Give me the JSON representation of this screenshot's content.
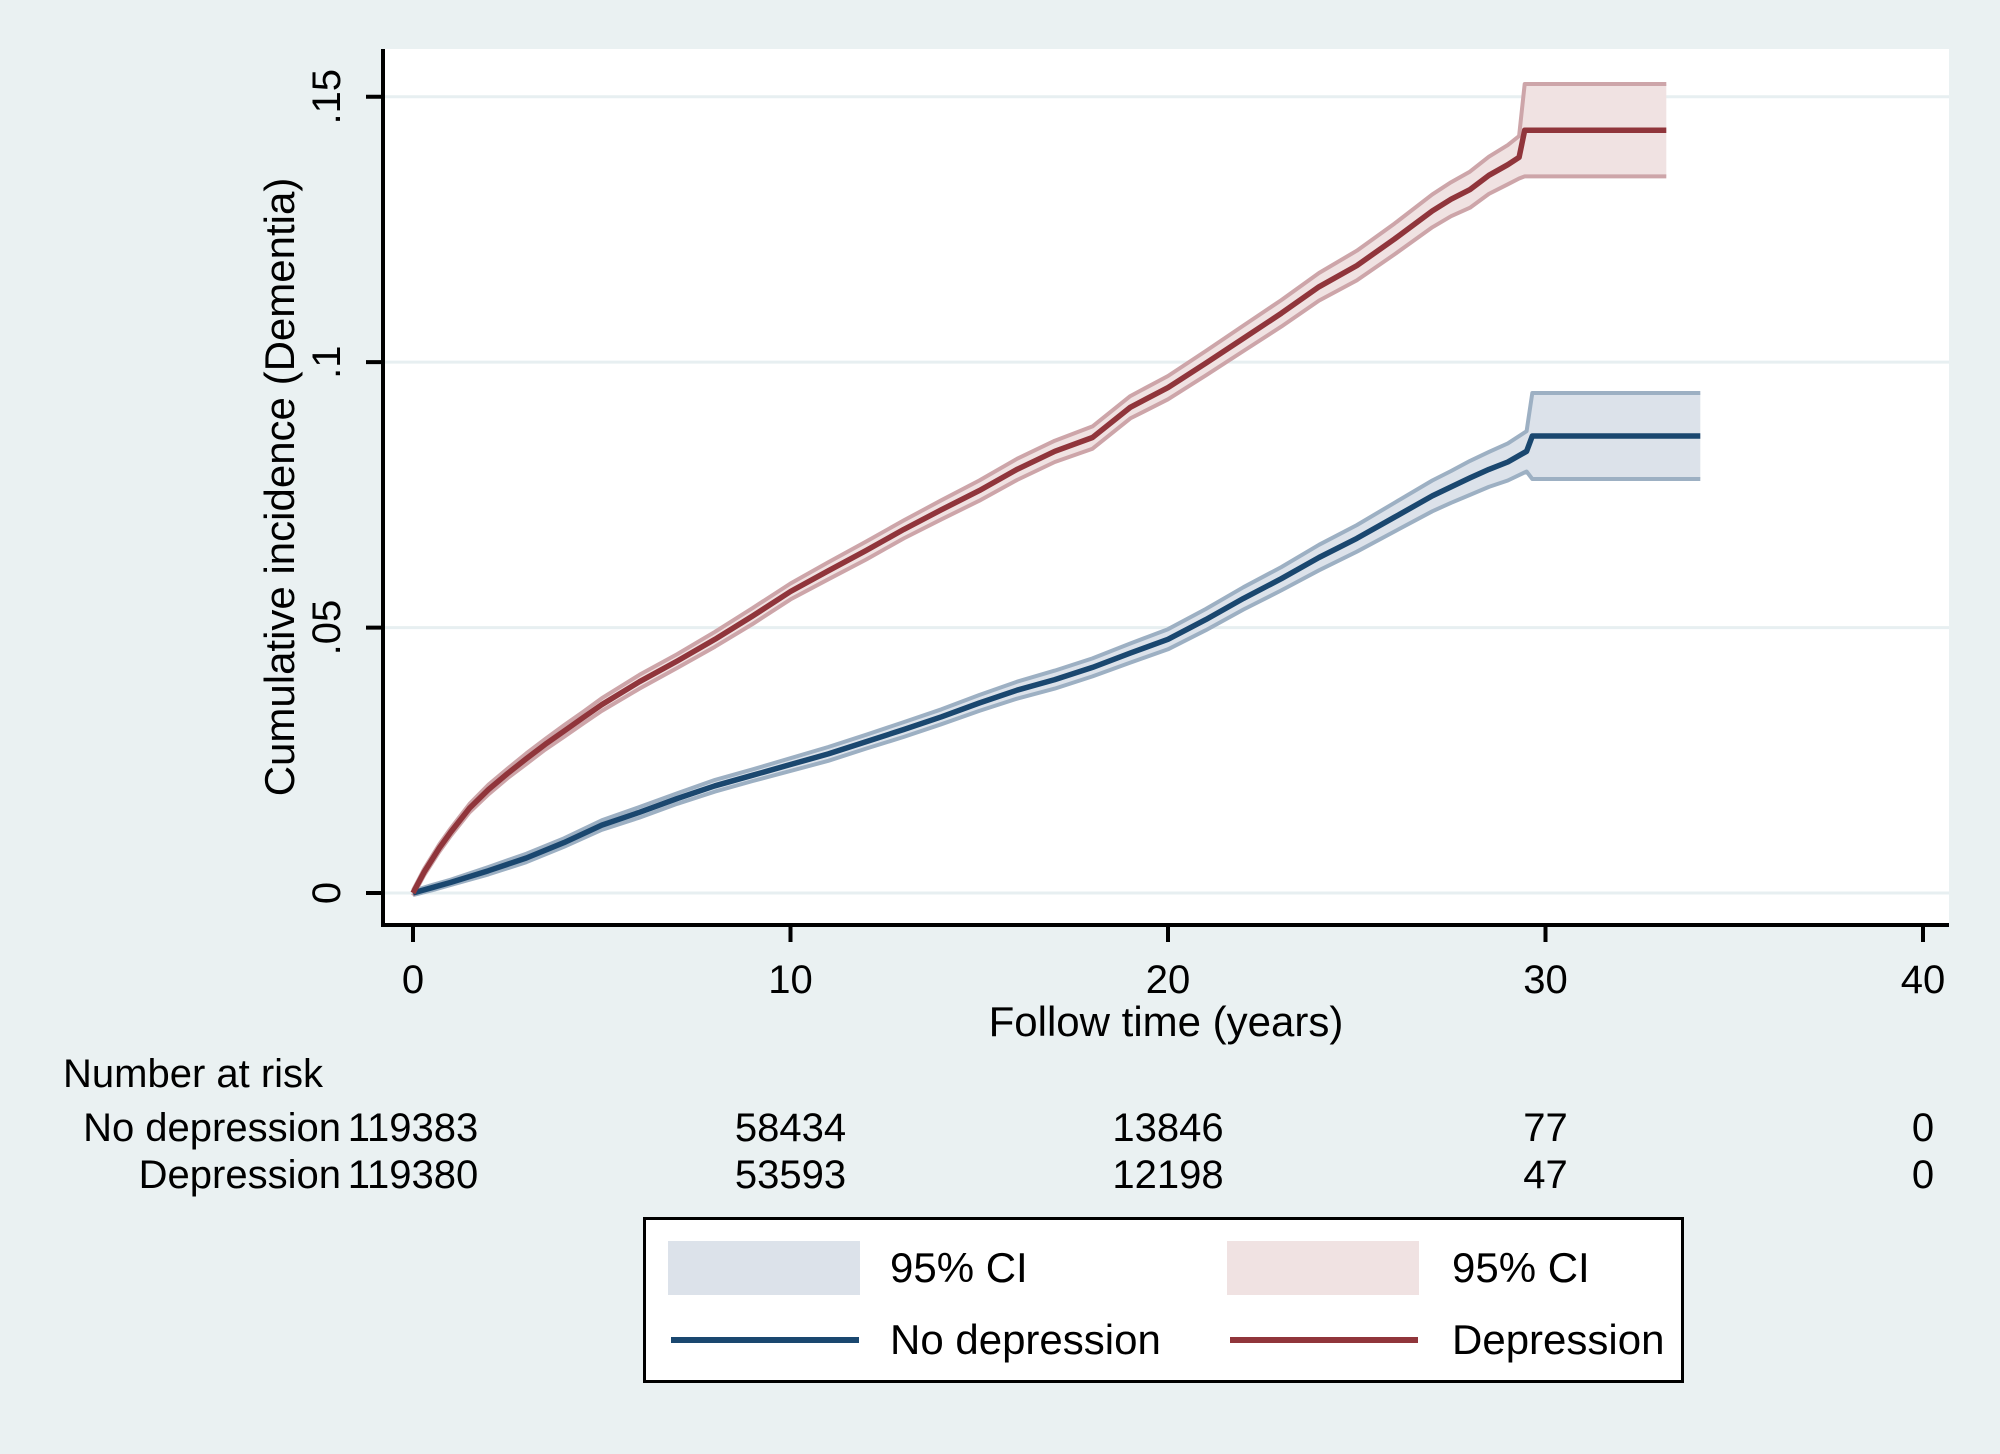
{
  "canvas": {
    "background": "#eaf1f2",
    "plot_background": "#ffffff",
    "grid_color": "#e7eff1",
    "axis_color": "#000000",
    "text_color": "#000000"
  },
  "chart_data": {
    "type": "line",
    "title": "",
    "xlabel": "Follow time (years)",
    "ylabel": "Cumulative incidence (Dementia)",
    "xlim": [
      -0.8,
      40.7
    ],
    "ylim": [
      0,
      0.159
    ],
    "grid": "horizontal",
    "legend_position": "bottom",
    "x_ticks": [
      {
        "v": 0,
        "label": "0"
      },
      {
        "v": 10,
        "label": "10"
      },
      {
        "v": 20,
        "label": "20"
      },
      {
        "v": 30,
        "label": "30"
      },
      {
        "v": 40,
        "label": "40"
      }
    ],
    "y_ticks": [
      {
        "v": 0,
        "label": "0"
      },
      {
        "v": 0.05,
        "label": ".05"
      },
      {
        "v": 0.1,
        "label": ".1"
      },
      {
        "v": 0.15,
        "label": ".15"
      }
    ],
    "series": [
      {
        "name": "No depression",
        "ci_name": "95% CI",
        "line_color": "#1a476f",
        "band_fill": "#dce2ea",
        "band_edge": "#9db0c3",
        "points_format": [
          "year",
          "cumulative_incidence",
          "ci_halfwidth"
        ],
        "points": [
          [
            0,
            0,
            0.0004
          ],
          [
            0.5,
            0.001,
            0.0005
          ],
          [
            1,
            0.002,
            0.0005
          ],
          [
            2,
            0.0042,
            0.0007
          ],
          [
            3,
            0.0066,
            0.0008
          ],
          [
            4,
            0.0095,
            0.0008
          ],
          [
            5,
            0.0128,
            0.0009
          ],
          [
            6,
            0.0152,
            0.001
          ],
          [
            7,
            0.0178,
            0.001
          ],
          [
            8,
            0.0202,
            0.0011
          ],
          [
            9,
            0.0222,
            0.0011
          ],
          [
            10,
            0.0242,
            0.0012
          ],
          [
            11,
            0.0262,
            0.0013
          ],
          [
            12,
            0.0285,
            0.0013
          ],
          [
            13,
            0.0308,
            0.0014
          ],
          [
            14,
            0.0332,
            0.0014
          ],
          [
            15,
            0.0358,
            0.0015
          ],
          [
            16,
            0.0382,
            0.0016
          ],
          [
            17,
            0.0402,
            0.0017
          ],
          [
            18,
            0.0425,
            0.0017
          ],
          [
            19,
            0.0452,
            0.0018
          ],
          [
            20,
            0.0478,
            0.0019
          ],
          [
            21,
            0.0515,
            0.002
          ],
          [
            22,
            0.0555,
            0.0021
          ],
          [
            23,
            0.0592,
            0.0022
          ],
          [
            24,
            0.0632,
            0.0024
          ],
          [
            25,
            0.0668,
            0.0025
          ],
          [
            26,
            0.0708,
            0.0027
          ],
          [
            27,
            0.0748,
            0.0029
          ],
          [
            27.5,
            0.0765,
            0.003
          ],
          [
            28,
            0.0782,
            0.0032
          ],
          [
            28.5,
            0.0798,
            0.0033
          ],
          [
            29,
            0.0812,
            0.0035
          ],
          [
            29.5,
            0.0832,
            0.0038
          ],
          [
            29.65,
            0.0861,
            0.0081
          ],
          [
            34.1,
            0.0861,
            0.0081
          ]
        ]
      },
      {
        "name": "Depression",
        "ci_name": "95% CI",
        "line_color": "#90353b",
        "band_fill": "#f0e2e2",
        "band_edge": "#cda5a9",
        "points_format": [
          "year",
          "cumulative_incidence",
          "ci_halfwidth"
        ],
        "points": [
          [
            0,
            0,
            0.0005
          ],
          [
            0.3,
            0.004,
            0.0006
          ],
          [
            0.7,
            0.0085,
            0.0007
          ],
          [
            1,
            0.0115,
            0.0007
          ],
          [
            1.5,
            0.016,
            0.0008
          ],
          [
            2,
            0.0195,
            0.0009
          ],
          [
            2.5,
            0.0225,
            0.0009
          ],
          [
            3,
            0.0253,
            0.001
          ],
          [
            3.5,
            0.028,
            0.001
          ],
          [
            4,
            0.0305,
            0.0011
          ],
          [
            4.5,
            0.033,
            0.0011
          ],
          [
            5,
            0.0355,
            0.0012
          ],
          [
            6,
            0.0398,
            0.0013
          ],
          [
            7,
            0.0437,
            0.0013
          ],
          [
            8,
            0.0478,
            0.0014
          ],
          [
            9,
            0.0522,
            0.0015
          ],
          [
            10,
            0.0568,
            0.0015
          ],
          [
            11,
            0.0607,
            0.0016
          ],
          [
            12,
            0.0645,
            0.0017
          ],
          [
            13,
            0.0685,
            0.0017
          ],
          [
            14,
            0.0722,
            0.0018
          ],
          [
            15,
            0.0758,
            0.0019
          ],
          [
            16,
            0.0798,
            0.002
          ],
          [
            17,
            0.0832,
            0.002
          ],
          [
            18,
            0.0858,
            0.0021
          ],
          [
            19,
            0.0915,
            0.0021
          ],
          [
            20,
            0.0952,
            0.0022
          ],
          [
            21,
            0.0998,
            0.0023
          ],
          [
            22,
            0.1045,
            0.0024
          ],
          [
            23,
            0.1092,
            0.0025
          ],
          [
            24,
            0.1142,
            0.0026
          ],
          [
            25,
            0.1182,
            0.0028
          ],
          [
            26,
            0.1232,
            0.0029
          ],
          [
            27,
            0.1285,
            0.0031
          ],
          [
            27.5,
            0.1307,
            0.0032
          ],
          [
            28,
            0.1325,
            0.0034
          ],
          [
            28.5,
            0.1352,
            0.0035
          ],
          [
            29,
            0.1372,
            0.0037
          ],
          [
            29.3,
            0.1386,
            0.004
          ],
          [
            29.45,
            0.1437,
            0.0087
          ],
          [
            33.2,
            0.1437,
            0.0087
          ]
        ]
      }
    ],
    "risk_table": {
      "title": "Number at risk",
      "times": [
        0,
        10,
        20,
        30,
        40
      ],
      "rows": [
        {
          "label": "No depression",
          "counts": [
            "119383",
            "58434",
            "13846",
            "77",
            "0"
          ]
        },
        {
          "label": "Depression",
          "counts": [
            "119380",
            "53593",
            "12198",
            "47",
            "0"
          ]
        }
      ]
    },
    "legend": {
      "entries": [
        {
          "type": "band",
          "label": "95% CI",
          "series": "No depression"
        },
        {
          "type": "band",
          "label": "95% CI",
          "series": "Depression"
        },
        {
          "type": "line",
          "label": "No depression",
          "series": "No depression"
        },
        {
          "type": "line",
          "label": "Depression",
          "series": "Depression"
        }
      ]
    }
  }
}
